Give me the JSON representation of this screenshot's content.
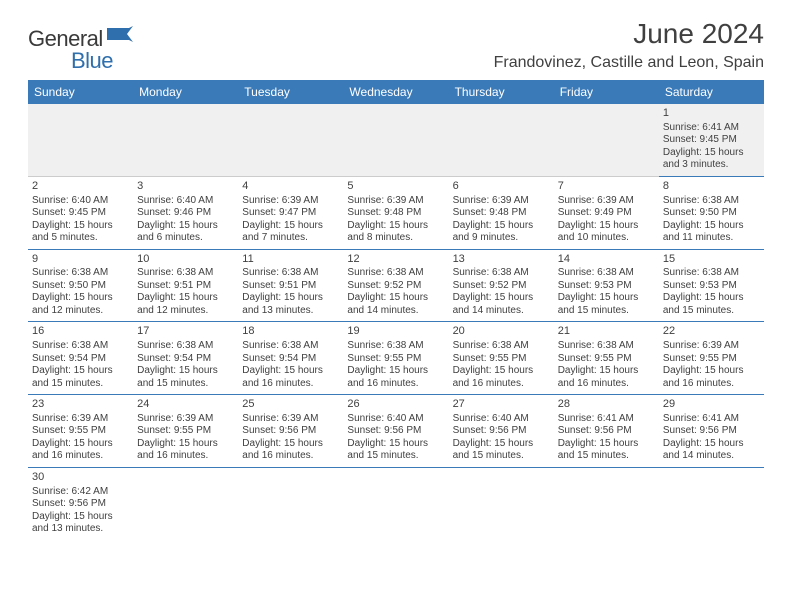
{
  "logo": {
    "general": "General",
    "blue": "Blue"
  },
  "title": "June 2024",
  "location": "Frandovinez, Castille and Leon, Spain",
  "colors": {
    "header_bg": "#3a7ab8",
    "header_text": "#ffffff",
    "text": "#404040",
    "empty_bg": "#f0f0f0",
    "border": "#3a7ab8"
  },
  "weekdays": [
    "Sunday",
    "Monday",
    "Tuesday",
    "Wednesday",
    "Thursday",
    "Friday",
    "Saturday"
  ],
  "cells": [
    {
      "day": "",
      "lines": []
    },
    {
      "day": "",
      "lines": []
    },
    {
      "day": "",
      "lines": []
    },
    {
      "day": "",
      "lines": []
    },
    {
      "day": "",
      "lines": []
    },
    {
      "day": "",
      "lines": []
    },
    {
      "day": "1",
      "lines": [
        "Sunrise: 6:41 AM",
        "Sunset: 9:45 PM",
        "Daylight: 15 hours and 3 minutes."
      ]
    },
    {
      "day": "2",
      "lines": [
        "Sunrise: 6:40 AM",
        "Sunset: 9:45 PM",
        "Daylight: 15 hours and 5 minutes."
      ]
    },
    {
      "day": "3",
      "lines": [
        "Sunrise: 6:40 AM",
        "Sunset: 9:46 PM",
        "Daylight: 15 hours and 6 minutes."
      ]
    },
    {
      "day": "4",
      "lines": [
        "Sunrise: 6:39 AM",
        "Sunset: 9:47 PM",
        "Daylight: 15 hours and 7 minutes."
      ]
    },
    {
      "day": "5",
      "lines": [
        "Sunrise: 6:39 AM",
        "Sunset: 9:48 PM",
        "Daylight: 15 hours and 8 minutes."
      ]
    },
    {
      "day": "6",
      "lines": [
        "Sunrise: 6:39 AM",
        "Sunset: 9:48 PM",
        "Daylight: 15 hours and 9 minutes."
      ]
    },
    {
      "day": "7",
      "lines": [
        "Sunrise: 6:39 AM",
        "Sunset: 9:49 PM",
        "Daylight: 15 hours and 10 minutes."
      ]
    },
    {
      "day": "8",
      "lines": [
        "Sunrise: 6:38 AM",
        "Sunset: 9:50 PM",
        "Daylight: 15 hours and 11 minutes."
      ]
    },
    {
      "day": "9",
      "lines": [
        "Sunrise: 6:38 AM",
        "Sunset: 9:50 PM",
        "Daylight: 15 hours and 12 minutes."
      ]
    },
    {
      "day": "10",
      "lines": [
        "Sunrise: 6:38 AM",
        "Sunset: 9:51 PM",
        "Daylight: 15 hours and 12 minutes."
      ]
    },
    {
      "day": "11",
      "lines": [
        "Sunrise: 6:38 AM",
        "Sunset: 9:51 PM",
        "Daylight: 15 hours and 13 minutes."
      ]
    },
    {
      "day": "12",
      "lines": [
        "Sunrise: 6:38 AM",
        "Sunset: 9:52 PM",
        "Daylight: 15 hours and 14 minutes."
      ]
    },
    {
      "day": "13",
      "lines": [
        "Sunrise: 6:38 AM",
        "Sunset: 9:52 PM",
        "Daylight: 15 hours and 14 minutes."
      ]
    },
    {
      "day": "14",
      "lines": [
        "Sunrise: 6:38 AM",
        "Sunset: 9:53 PM",
        "Daylight: 15 hours and 15 minutes."
      ]
    },
    {
      "day": "15",
      "lines": [
        "Sunrise: 6:38 AM",
        "Sunset: 9:53 PM",
        "Daylight: 15 hours and 15 minutes."
      ]
    },
    {
      "day": "16",
      "lines": [
        "Sunrise: 6:38 AM",
        "Sunset: 9:54 PM",
        "Daylight: 15 hours and 15 minutes."
      ]
    },
    {
      "day": "17",
      "lines": [
        "Sunrise: 6:38 AM",
        "Sunset: 9:54 PM",
        "Daylight: 15 hours and 15 minutes."
      ]
    },
    {
      "day": "18",
      "lines": [
        "Sunrise: 6:38 AM",
        "Sunset: 9:54 PM",
        "Daylight: 15 hours and 16 minutes."
      ]
    },
    {
      "day": "19",
      "lines": [
        "Sunrise: 6:38 AM",
        "Sunset: 9:55 PM",
        "Daylight: 15 hours and 16 minutes."
      ]
    },
    {
      "day": "20",
      "lines": [
        "Sunrise: 6:38 AM",
        "Sunset: 9:55 PM",
        "Daylight: 15 hours and 16 minutes."
      ]
    },
    {
      "day": "21",
      "lines": [
        "Sunrise: 6:38 AM",
        "Sunset: 9:55 PM",
        "Daylight: 15 hours and 16 minutes."
      ]
    },
    {
      "day": "22",
      "lines": [
        "Sunrise: 6:39 AM",
        "Sunset: 9:55 PM",
        "Daylight: 15 hours and 16 minutes."
      ]
    },
    {
      "day": "23",
      "lines": [
        "Sunrise: 6:39 AM",
        "Sunset: 9:55 PM",
        "Daylight: 15 hours and 16 minutes."
      ]
    },
    {
      "day": "24",
      "lines": [
        "Sunrise: 6:39 AM",
        "Sunset: 9:55 PM",
        "Daylight: 15 hours and 16 minutes."
      ]
    },
    {
      "day": "25",
      "lines": [
        "Sunrise: 6:39 AM",
        "Sunset: 9:56 PM",
        "Daylight: 15 hours and 16 minutes."
      ]
    },
    {
      "day": "26",
      "lines": [
        "Sunrise: 6:40 AM",
        "Sunset: 9:56 PM",
        "Daylight: 15 hours and 15 minutes."
      ]
    },
    {
      "day": "27",
      "lines": [
        "Sunrise: 6:40 AM",
        "Sunset: 9:56 PM",
        "Daylight: 15 hours and 15 minutes."
      ]
    },
    {
      "day": "28",
      "lines": [
        "Sunrise: 6:41 AM",
        "Sunset: 9:56 PM",
        "Daylight: 15 hours and 15 minutes."
      ]
    },
    {
      "day": "29",
      "lines": [
        "Sunrise: 6:41 AM",
        "Sunset: 9:56 PM",
        "Daylight: 15 hours and 14 minutes."
      ]
    },
    {
      "day": "30",
      "lines": [
        "Sunrise: 6:42 AM",
        "Sunset: 9:56 PM",
        "Daylight: 15 hours and 13 minutes."
      ]
    },
    {
      "day": "",
      "lines": []
    },
    {
      "day": "",
      "lines": []
    },
    {
      "day": "",
      "lines": []
    },
    {
      "day": "",
      "lines": []
    },
    {
      "day": "",
      "lines": []
    },
    {
      "day": "",
      "lines": []
    }
  ]
}
